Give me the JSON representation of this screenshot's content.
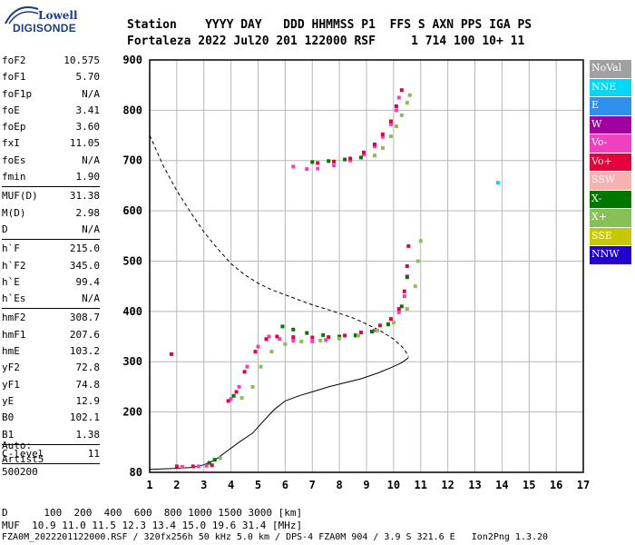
{
  "header": {
    "line1": "Station    YYYY DAY   DDD HHMMSS P1  FFS S AXN PPS IGA PS",
    "line2": "Fortaleza 2022 Jul20 201 122000 RSF     1 714 100 10+ 11"
  },
  "logo": {
    "top": "Lowell",
    "bottom": "DIGISONDE"
  },
  "params": [
    {
      "name": "foF2",
      "value": "10.575"
    },
    {
      "name": "foF1",
      "value": "5.70"
    },
    {
      "name": "foF1p",
      "value": "N/A"
    },
    {
      "name": "foE",
      "value": "3.41"
    },
    {
      "name": "foEp",
      "value": "3.60"
    },
    {
      "name": "fxI",
      "value": "11.05"
    },
    {
      "name": "foEs",
      "value": "N/A"
    },
    {
      "name": "fmin",
      "value": "1.90"
    },
    {
      "sep": true
    },
    {
      "name": "MUF(D)",
      "value": "31.38"
    },
    {
      "name": "M(D)",
      "value": "2.98"
    },
    {
      "name": "D",
      "value": "N/A"
    },
    {
      "sep": true
    },
    {
      "name": "h`F",
      "value": "215.0"
    },
    {
      "name": "h`F2",
      "value": "345.0"
    },
    {
      "name": "h`E",
      "value": "99.4"
    },
    {
      "name": "h`Es",
      "value": "N/A"
    },
    {
      "sep": true
    },
    {
      "name": "hmF2",
      "value": "308.7"
    },
    {
      "name": "hmF1",
      "value": "207.6"
    },
    {
      "name": "hmE",
      "value": "103.2"
    },
    {
      "name": "yF2",
      "value": "72.8"
    },
    {
      "name": "yF1",
      "value": "74.8"
    },
    {
      "name": "yE",
      "value": "12.9"
    },
    {
      "name": "B0",
      "value": "102.1"
    },
    {
      "name": "B1",
      "value": "1.38"
    },
    {
      "sep": true
    },
    {
      "name": "C-level",
      "value": "11"
    },
    {
      "sep": true
    }
  ],
  "notes": [
    "Auto:",
    "Artist5",
    "500200"
  ],
  "footer": {
    "d_row": "D      100  200  400  600  800 1000 1500 3000 [km]",
    "muf_row": "MUF  10.9 11.0 11.5 12.3 13.4 15.0 19.6 31.4 [MHz]",
    "file_row": "FZA0M_2022201122000.RSF / 320fx256h 50 kHz 5.0 km / DPS-4 FZA0M 904 / 3.9 S 321.6 E   Ion2Png 1.3.20"
  },
  "legend": [
    {
      "label": "NoVal",
      "color": "#a0a0a0"
    },
    {
      "label": "NNE",
      "color": "#00d8f8"
    },
    {
      "label": "E",
      "color": "#3090f0"
    },
    {
      "label": "W",
      "color": "#a000a0"
    },
    {
      "label": "Vo-",
      "color": "#f040c0"
    },
    {
      "label": "Vo+",
      "color": "#e8003c"
    },
    {
      "label": "SSW",
      "color": "#f8b0b0"
    },
    {
      "label": "X-",
      "color": "#007800"
    },
    {
      "label": "X+",
      "color": "#88c058"
    },
    {
      "label": "SSE",
      "color": "#c8c800"
    },
    {
      "label": "NNW",
      "color": "#2000d0"
    }
  ],
  "chart_data": {
    "type": "scatter",
    "xlim": [
      1,
      17
    ],
    "ylim": [
      80,
      900
    ],
    "x_ticks": [
      "1",
      "2",
      "3",
      "4",
      "5",
      "6",
      "7",
      "8",
      "9",
      "10",
      "11",
      "12",
      "13",
      "14",
      "15",
      "16",
      "17"
    ],
    "y_ticks": [
      "80",
      "200",
      "300",
      "400",
      "500",
      "600",
      "700",
      "800",
      "900"
    ],
    "grid": true,
    "series": [
      {
        "name": "Vo-",
        "color": "#f040c0",
        "points": [
          [
            4.0,
            226
          ],
          [
            4.3,
            250
          ],
          [
            4.6,
            290
          ],
          [
            5.0,
            330
          ],
          [
            5.4,
            350
          ],
          [
            5.8,
            345
          ],
          [
            6.3,
            342
          ],
          [
            7.0,
            340
          ],
          [
            7.5,
            343
          ],
          [
            8.0,
            348
          ],
          [
            8.6,
            353
          ],
          [
            9.3,
            362
          ],
          [
            9.8,
            375
          ],
          [
            10.2,
            398
          ],
          [
            10.4,
            430
          ],
          [
            10.5,
            470
          ],
          [
            2.2,
            91
          ],
          [
            2.8,
            92
          ],
          [
            3.1,
            93
          ],
          [
            6.3,
            688
          ],
          [
            6.8,
            683
          ],
          [
            7.2,
            684
          ],
          [
            7.8,
            690
          ],
          [
            8.4,
            700
          ],
          [
            8.9,
            712
          ],
          [
            9.3,
            728
          ],
          [
            9.6,
            747
          ],
          [
            9.9,
            772
          ],
          [
            10.1,
            800
          ],
          [
            10.2,
            825
          ]
        ]
      },
      {
        "name": "Vo+",
        "color": "#e8003c",
        "points": [
          [
            3.9,
            222
          ],
          [
            4.2,
            240
          ],
          [
            4.5,
            280
          ],
          [
            4.9,
            320
          ],
          [
            5.3,
            345
          ],
          [
            5.7,
            350
          ],
          [
            6.3,
            349
          ],
          [
            7.0,
            348
          ],
          [
            7.6,
            349
          ],
          [
            8.2,
            352
          ],
          [
            8.8,
            358
          ],
          [
            9.5,
            372
          ],
          [
            9.9,
            385
          ],
          [
            10.2,
            405
          ],
          [
            10.4,
            440
          ],
          [
            10.5,
            490
          ],
          [
            10.55,
            530
          ],
          [
            1.8,
            315
          ],
          [
            2.0,
            92
          ],
          [
            2.6,
            92
          ],
          [
            3.3,
            94
          ],
          [
            7.2,
            695
          ],
          [
            7.8,
            698
          ],
          [
            8.4,
            704
          ],
          [
            8.9,
            716
          ],
          [
            9.3,
            732
          ],
          [
            9.6,
            752
          ],
          [
            9.9,
            778
          ],
          [
            10.1,
            808
          ],
          [
            10.3,
            840
          ]
        ]
      },
      {
        "name": "X-",
        "color": "#007800",
        "points": [
          [
            4.1,
            232
          ],
          [
            5.9,
            370
          ],
          [
            6.3,
            364
          ],
          [
            6.8,
            357
          ],
          [
            7.4,
            353
          ],
          [
            8.0,
            350
          ],
          [
            8.6,
            352
          ],
          [
            9.2,
            360
          ],
          [
            9.8,
            374
          ],
          [
            10.3,
            410
          ],
          [
            10.5,
            468
          ],
          [
            3.2,
            99
          ],
          [
            3.4,
            105
          ],
          [
            7.0,
            697
          ],
          [
            7.6,
            699
          ],
          [
            8.2,
            702
          ],
          [
            8.8,
            706
          ]
        ]
      },
      {
        "name": "X+",
        "color": "#88c058",
        "points": [
          [
            4.4,
            228
          ],
          [
            4.8,
            250
          ],
          [
            5.1,
            290
          ],
          [
            5.5,
            320
          ],
          [
            6.0,
            335
          ],
          [
            6.6,
            340
          ],
          [
            7.3,
            342
          ],
          [
            8.0,
            346
          ],
          [
            8.7,
            352
          ],
          [
            9.4,
            362
          ],
          [
            10.0,
            378
          ],
          [
            10.5,
            405
          ],
          [
            10.8,
            450
          ],
          [
            10.9,
            500
          ],
          [
            11.0,
            540
          ],
          [
            3.6,
            108
          ],
          [
            9.3,
            710
          ],
          [
            9.6,
            725
          ],
          [
            9.9,
            748
          ],
          [
            10.1,
            768
          ],
          [
            10.3,
            790
          ],
          [
            10.5,
            815
          ],
          [
            10.6,
            830
          ]
        ]
      },
      {
        "name": "NNE",
        "color": "#00d8f8",
        "points": [
          [
            13.85,
            656
          ]
        ]
      }
    ],
    "profile": {
      "style": "solid",
      "points": [
        [
          1.0,
          86
        ],
        [
          2.0,
          88
        ],
        [
          2.6,
          90
        ],
        [
          3.0,
          95
        ],
        [
          3.4,
          104
        ],
        [
          3.8,
          120
        ],
        [
          4.3,
          140
        ],
        [
          4.8,
          158
        ],
        [
          5.2,
          182
        ],
        [
          5.6,
          205
        ],
        [
          6.0,
          222
        ],
        [
          6.5,
          232
        ],
        [
          7.0,
          240
        ],
        [
          7.6,
          250
        ],
        [
          8.2,
          258
        ],
        [
          8.8,
          266
        ],
        [
          9.4,
          277
        ],
        [
          9.9,
          288
        ],
        [
          10.3,
          298
        ],
        [
          10.55,
          308
        ]
      ]
    },
    "muf_curve": {
      "style": "dashed",
      "points": [
        [
          1.0,
          750
        ],
        [
          1.5,
          690
        ],
        [
          2.0,
          640
        ],
        [
          2.5,
          598
        ],
        [
          3.0,
          558
        ],
        [
          3.5,
          525
        ],
        [
          4.0,
          495
        ],
        [
          4.5,
          473
        ],
        [
          5.0,
          456
        ],
        [
          5.5,
          443
        ],
        [
          6.0,
          433
        ],
        [
          6.5,
          423
        ],
        [
          7.0,
          413
        ],
        [
          7.5,
          405
        ],
        [
          8.0,
          396
        ],
        [
          8.5,
          387
        ],
        [
          9.0,
          375
        ],
        [
          9.5,
          362
        ],
        [
          10.0,
          345
        ],
        [
          10.4,
          325
        ],
        [
          10.55,
          310
        ]
      ]
    }
  }
}
